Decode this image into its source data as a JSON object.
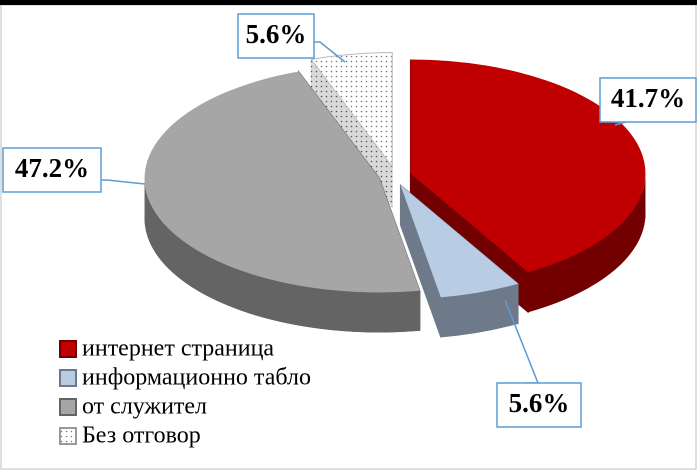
{
  "chart_data": {
    "type": "pie3d",
    "categories": [
      "интернет страница",
      "информационно табло",
      "от служител",
      "Без отговор"
    ],
    "values": [
      41.7,
      5.6,
      47.2,
      5.6
    ],
    "value_labels": [
      "41.7%",
      "5.6%",
      "47.2%",
      "5.6%"
    ],
    "colors": [
      "#c00000",
      "#b8cce4",
      "#a6a6a6",
      "#ffffff"
    ],
    "patterns": [
      null,
      null,
      null,
      "dots"
    ],
    "legend": "bottom-left"
  }
}
